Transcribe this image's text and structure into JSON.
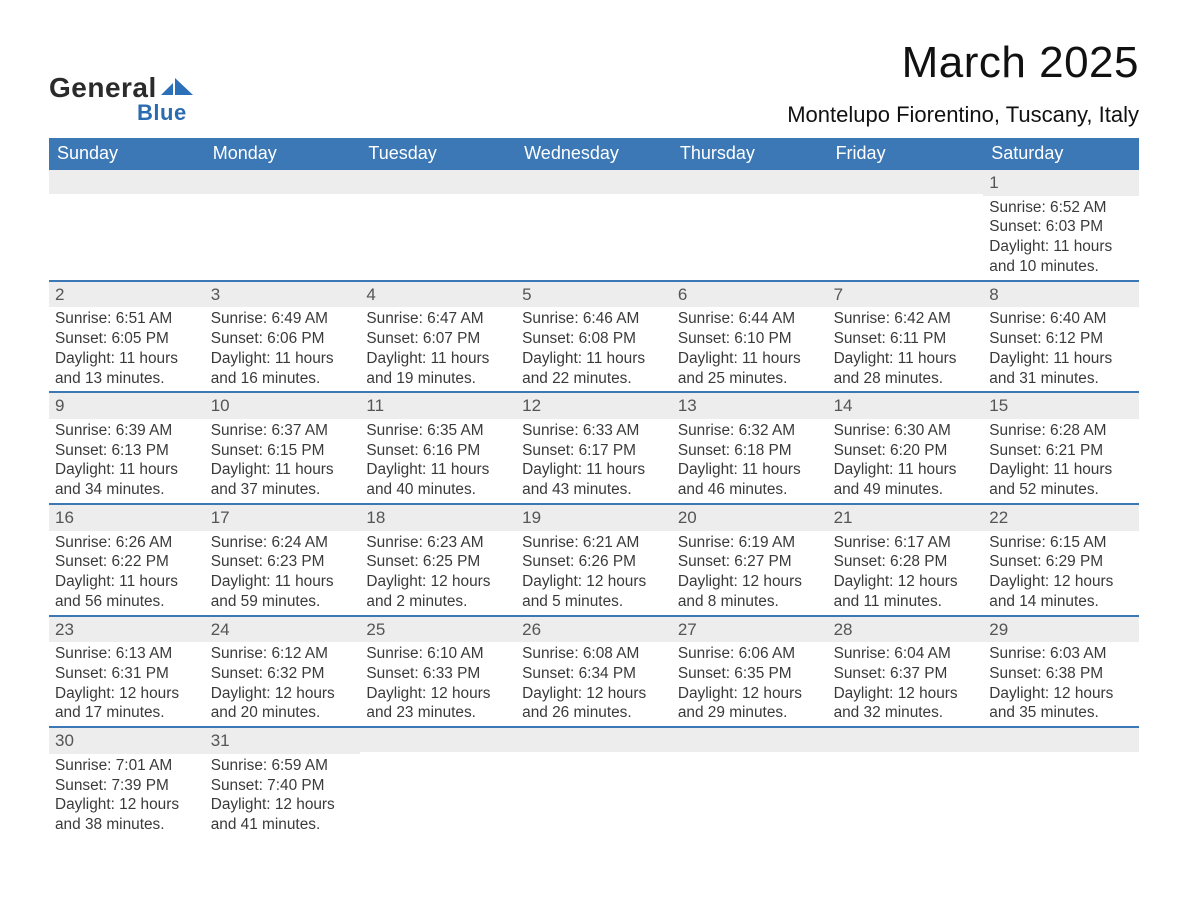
{
  "logo": {
    "text1": "General",
    "text2": "Blue",
    "mark_color": "#2b70b8"
  },
  "title": "March 2025",
  "location": "Montelupo Fiorentino, Tuscany, Italy",
  "colors": {
    "header_bg": "#3b78b5",
    "header_text": "#ffffff",
    "row_divider": "#3b78b5",
    "daynum_bg": "#ededed",
    "daynum_text": "#555555",
    "body_text": "#3a3a3a",
    "page_bg": "#ffffff"
  },
  "typography": {
    "title_fontsize": 44,
    "location_fontsize": 22,
    "header_fontsize": 18,
    "daynum_fontsize": 17,
    "body_fontsize": 15.4,
    "font_family": "Arial"
  },
  "layout": {
    "columns": 7,
    "cell_lines": 4
  },
  "labels": {
    "sunrise": "Sunrise: ",
    "sunset": "Sunset: ",
    "daylight": "Daylight: "
  },
  "day_headers": [
    "Sunday",
    "Monday",
    "Tuesday",
    "Wednesday",
    "Thursday",
    "Friday",
    "Saturday"
  ],
  "weeks": [
    [
      null,
      null,
      null,
      null,
      null,
      null,
      {
        "n": "1",
        "sr": "6:52 AM",
        "ss": "6:03 PM",
        "dl1": "11 hours",
        "dl2": "and 10 minutes."
      }
    ],
    [
      {
        "n": "2",
        "sr": "6:51 AM",
        "ss": "6:05 PM",
        "dl1": "11 hours",
        "dl2": "and 13 minutes."
      },
      {
        "n": "3",
        "sr": "6:49 AM",
        "ss": "6:06 PM",
        "dl1": "11 hours",
        "dl2": "and 16 minutes."
      },
      {
        "n": "4",
        "sr": "6:47 AM",
        "ss": "6:07 PM",
        "dl1": "11 hours",
        "dl2": "and 19 minutes."
      },
      {
        "n": "5",
        "sr": "6:46 AM",
        "ss": "6:08 PM",
        "dl1": "11 hours",
        "dl2": "and 22 minutes."
      },
      {
        "n": "6",
        "sr": "6:44 AM",
        "ss": "6:10 PM",
        "dl1": "11 hours",
        "dl2": "and 25 minutes."
      },
      {
        "n": "7",
        "sr": "6:42 AM",
        "ss": "6:11 PM",
        "dl1": "11 hours",
        "dl2": "and 28 minutes."
      },
      {
        "n": "8",
        "sr": "6:40 AM",
        "ss": "6:12 PM",
        "dl1": "11 hours",
        "dl2": "and 31 minutes."
      }
    ],
    [
      {
        "n": "9",
        "sr": "6:39 AM",
        "ss": "6:13 PM",
        "dl1": "11 hours",
        "dl2": "and 34 minutes."
      },
      {
        "n": "10",
        "sr": "6:37 AM",
        "ss": "6:15 PM",
        "dl1": "11 hours",
        "dl2": "and 37 minutes."
      },
      {
        "n": "11",
        "sr": "6:35 AM",
        "ss": "6:16 PM",
        "dl1": "11 hours",
        "dl2": "and 40 minutes."
      },
      {
        "n": "12",
        "sr": "6:33 AM",
        "ss": "6:17 PM",
        "dl1": "11 hours",
        "dl2": "and 43 minutes."
      },
      {
        "n": "13",
        "sr": "6:32 AM",
        "ss": "6:18 PM",
        "dl1": "11 hours",
        "dl2": "and 46 minutes."
      },
      {
        "n": "14",
        "sr": "6:30 AM",
        "ss": "6:20 PM",
        "dl1": "11 hours",
        "dl2": "and 49 minutes."
      },
      {
        "n": "15",
        "sr": "6:28 AM",
        "ss": "6:21 PM",
        "dl1": "11 hours",
        "dl2": "and 52 minutes."
      }
    ],
    [
      {
        "n": "16",
        "sr": "6:26 AM",
        "ss": "6:22 PM",
        "dl1": "11 hours",
        "dl2": "and 56 minutes."
      },
      {
        "n": "17",
        "sr": "6:24 AM",
        "ss": "6:23 PM",
        "dl1": "11 hours",
        "dl2": "and 59 minutes."
      },
      {
        "n": "18",
        "sr": "6:23 AM",
        "ss": "6:25 PM",
        "dl1": "12 hours",
        "dl2": "and 2 minutes."
      },
      {
        "n": "19",
        "sr": "6:21 AM",
        "ss": "6:26 PM",
        "dl1": "12 hours",
        "dl2": "and 5 minutes."
      },
      {
        "n": "20",
        "sr": "6:19 AM",
        "ss": "6:27 PM",
        "dl1": "12 hours",
        "dl2": "and 8 minutes."
      },
      {
        "n": "21",
        "sr": "6:17 AM",
        "ss": "6:28 PM",
        "dl1": "12 hours",
        "dl2": "and 11 minutes."
      },
      {
        "n": "22",
        "sr": "6:15 AM",
        "ss": "6:29 PM",
        "dl1": "12 hours",
        "dl2": "and 14 minutes."
      }
    ],
    [
      {
        "n": "23",
        "sr": "6:13 AM",
        "ss": "6:31 PM",
        "dl1": "12 hours",
        "dl2": "and 17 minutes."
      },
      {
        "n": "24",
        "sr": "6:12 AM",
        "ss": "6:32 PM",
        "dl1": "12 hours",
        "dl2": "and 20 minutes."
      },
      {
        "n": "25",
        "sr": "6:10 AM",
        "ss": "6:33 PM",
        "dl1": "12 hours",
        "dl2": "and 23 minutes."
      },
      {
        "n": "26",
        "sr": "6:08 AM",
        "ss": "6:34 PM",
        "dl1": "12 hours",
        "dl2": "and 26 minutes."
      },
      {
        "n": "27",
        "sr": "6:06 AM",
        "ss": "6:35 PM",
        "dl1": "12 hours",
        "dl2": "and 29 minutes."
      },
      {
        "n": "28",
        "sr": "6:04 AM",
        "ss": "6:37 PM",
        "dl1": "12 hours",
        "dl2": "and 32 minutes."
      },
      {
        "n": "29",
        "sr": "6:03 AM",
        "ss": "6:38 PM",
        "dl1": "12 hours",
        "dl2": "and 35 minutes."
      }
    ],
    [
      {
        "n": "30",
        "sr": "7:01 AM",
        "ss": "7:39 PM",
        "dl1": "12 hours",
        "dl2": "and 38 minutes."
      },
      {
        "n": "31",
        "sr": "6:59 AM",
        "ss": "7:40 PM",
        "dl1": "12 hours",
        "dl2": "and 41 minutes."
      },
      null,
      null,
      null,
      null,
      null
    ]
  ]
}
